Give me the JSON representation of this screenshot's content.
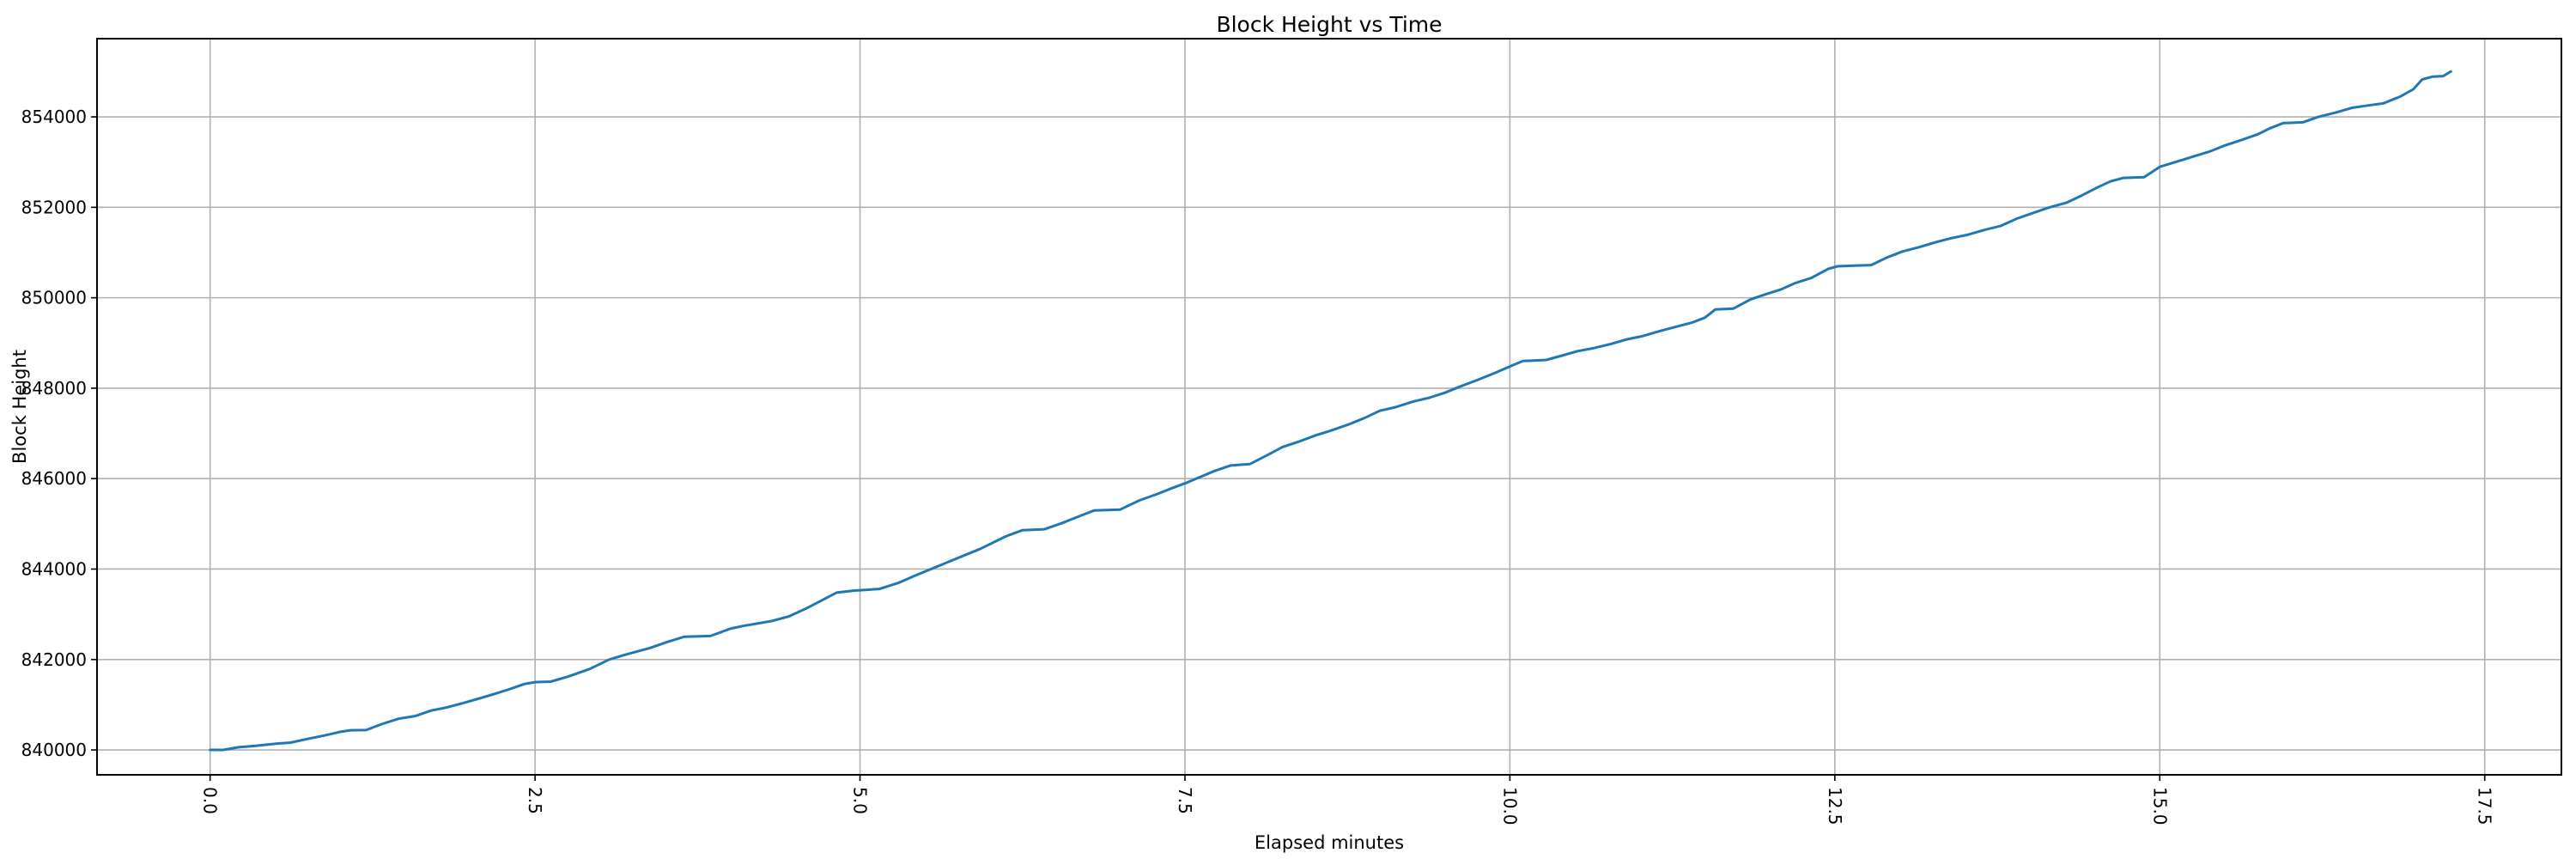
{
  "page": {
    "background": "#ffffff"
  },
  "chart_data": {
    "type": "line",
    "title": "Block Height vs Time",
    "xlabel": "Elapsed minutes",
    "ylabel": "Block Height",
    "grid": true,
    "legend_position": "none",
    "xlim": [
      -0.87,
      18.09
    ],
    "ylim": [
      839450,
      855730
    ],
    "x_ticks": {
      "values": [
        0.0,
        2.5,
        5.0,
        7.5,
        10.0,
        12.5,
        15.0,
        17.5
      ],
      "labels": [
        "0.0",
        "2.5",
        "5.0",
        "7.5",
        "10.0",
        "12.5",
        "15.0",
        "17.5"
      ],
      "rotation_deg": 90
    },
    "y_ticks": {
      "values": [
        840000,
        842000,
        844000,
        846000,
        848000,
        850000,
        852000,
        854000
      ],
      "labels": [
        "840000",
        "842000",
        "844000",
        "846000",
        "848000",
        "850000",
        "852000",
        "854000"
      ],
      "rotation_deg": 0
    },
    "series": [
      {
        "name": "block-height",
        "color": "#1f77b4",
        "line_width": 3,
        "points": [
          [
            0.0,
            840001
          ],
          [
            0.1,
            840001
          ],
          [
            0.22,
            840060
          ],
          [
            0.35,
            840092
          ],
          [
            0.5,
            840135
          ],
          [
            0.62,
            840162
          ],
          [
            0.75,
            840245
          ],
          [
            0.88,
            840320
          ],
          [
            1.0,
            840400
          ],
          [
            1.08,
            840435
          ],
          [
            1.2,
            840440
          ],
          [
            1.32,
            840570
          ],
          [
            1.45,
            840690
          ],
          [
            1.58,
            840752
          ],
          [
            1.7,
            840870
          ],
          [
            1.82,
            840940
          ],
          [
            1.95,
            841040
          ],
          [
            2.05,
            841122
          ],
          [
            2.18,
            841232
          ],
          [
            2.3,
            841340
          ],
          [
            2.42,
            841460
          ],
          [
            2.5,
            841500
          ],
          [
            2.62,
            841512
          ],
          [
            2.75,
            841620
          ],
          [
            2.92,
            841790
          ],
          [
            3.07,
            842000
          ],
          [
            3.2,
            842112
          ],
          [
            3.3,
            842190
          ],
          [
            3.38,
            842250
          ],
          [
            3.52,
            842390
          ],
          [
            3.65,
            842505
          ],
          [
            3.85,
            842520
          ],
          [
            4.0,
            842680
          ],
          [
            4.1,
            842742
          ],
          [
            4.2,
            842792
          ],
          [
            4.32,
            842850
          ],
          [
            4.45,
            842952
          ],
          [
            4.58,
            843120
          ],
          [
            4.72,
            843330
          ],
          [
            4.82,
            843480
          ],
          [
            4.95,
            843522
          ],
          [
            5.15,
            843560
          ],
          [
            5.3,
            843700
          ],
          [
            5.42,
            843850
          ],
          [
            5.55,
            844005
          ],
          [
            5.68,
            844160
          ],
          [
            5.8,
            844300
          ],
          [
            5.92,
            844440
          ],
          [
            6.02,
            844580
          ],
          [
            6.12,
            844722
          ],
          [
            6.25,
            844860
          ],
          [
            6.42,
            844882
          ],
          [
            6.55,
            845012
          ],
          [
            6.68,
            845160
          ],
          [
            6.8,
            845295
          ],
          [
            7.0,
            845315
          ],
          [
            7.15,
            845520
          ],
          [
            7.28,
            845652
          ],
          [
            7.4,
            845790
          ],
          [
            7.5,
            845896
          ],
          [
            7.62,
            846040
          ],
          [
            7.72,
            846162
          ],
          [
            7.85,
            846290
          ],
          [
            8.0,
            846322
          ],
          [
            8.12,
            846500
          ],
          [
            8.25,
            846700
          ],
          [
            8.38,
            846822
          ],
          [
            8.5,
            846952
          ],
          [
            8.62,
            847060
          ],
          [
            8.75,
            847190
          ],
          [
            8.88,
            847340
          ],
          [
            9.0,
            847500
          ],
          [
            9.12,
            847580
          ],
          [
            9.25,
            847700
          ],
          [
            9.38,
            847790
          ],
          [
            9.5,
            847900
          ],
          [
            9.62,
            848040
          ],
          [
            9.75,
            848180
          ],
          [
            9.88,
            848330
          ],
          [
            10.0,
            848480
          ],
          [
            10.1,
            848600
          ],
          [
            10.28,
            848626
          ],
          [
            10.4,
            848720
          ],
          [
            10.52,
            848820
          ],
          [
            10.65,
            848890
          ],
          [
            10.78,
            848980
          ],
          [
            10.9,
            849080
          ],
          [
            11.02,
            849152
          ],
          [
            11.15,
            849260
          ],
          [
            11.28,
            849360
          ],
          [
            11.4,
            849450
          ],
          [
            11.5,
            849560
          ],
          [
            11.58,
            849740
          ],
          [
            11.72,
            849762
          ],
          [
            11.85,
            849960
          ],
          [
            11.95,
            850062
          ],
          [
            12.08,
            850180
          ],
          [
            12.2,
            850330
          ],
          [
            12.32,
            850440
          ],
          [
            12.45,
            850640
          ],
          [
            12.52,
            850696
          ],
          [
            12.65,
            850712
          ],
          [
            12.78,
            850722
          ],
          [
            12.9,
            850890
          ],
          [
            13.02,
            851022
          ],
          [
            13.15,
            851120
          ],
          [
            13.28,
            851232
          ],
          [
            13.4,
            851320
          ],
          [
            13.52,
            851392
          ],
          [
            13.65,
            851500
          ],
          [
            13.78,
            851592
          ],
          [
            13.9,
            851750
          ],
          [
            14.02,
            851870
          ],
          [
            14.15,
            852000
          ],
          [
            14.28,
            852100
          ],
          [
            14.4,
            852262
          ],
          [
            14.52,
            852440
          ],
          [
            14.62,
            852572
          ],
          [
            14.72,
            852650
          ],
          [
            14.88,
            852666
          ],
          [
            15.0,
            852896
          ],
          [
            15.12,
            853000
          ],
          [
            15.25,
            853116
          ],
          [
            15.38,
            853230
          ],
          [
            15.5,
            853366
          ],
          [
            15.62,
            853480
          ],
          [
            15.75,
            853610
          ],
          [
            15.85,
            853750
          ],
          [
            15.95,
            853862
          ],
          [
            16.1,
            853880
          ],
          [
            16.22,
            854000
          ],
          [
            16.35,
            854092
          ],
          [
            16.48,
            854200
          ],
          [
            16.6,
            854252
          ],
          [
            16.72,
            854300
          ],
          [
            16.85,
            854450
          ],
          [
            16.95,
            854610
          ],
          [
            17.02,
            854830
          ],
          [
            17.1,
            854890
          ],
          [
            17.18,
            854902
          ],
          [
            17.24,
            855005
          ]
        ]
      }
    ],
    "style": {
      "grid_color": "#b0b0b0",
      "grid_width": 1.6,
      "spine_color": "#000000",
      "spine_width": 2,
      "tick_color": "#000000",
      "tick_length": 7,
      "background": "#ffffff"
    }
  }
}
